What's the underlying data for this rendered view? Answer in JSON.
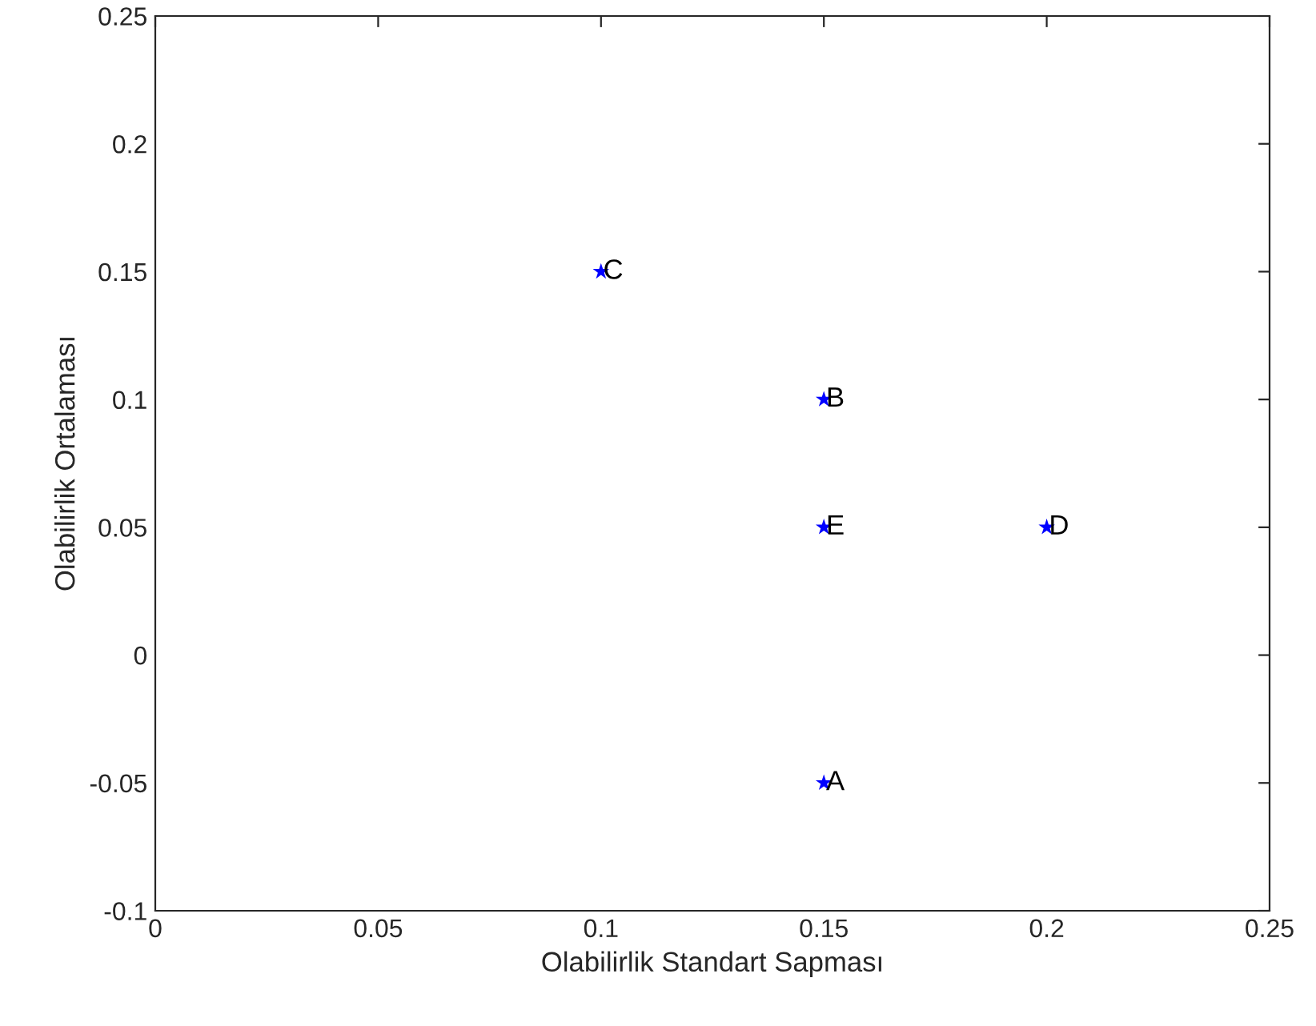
{
  "chart_data": {
    "type": "scatter",
    "xlabel": "Olabilirlik Standart Sapması",
    "ylabel": "Olabilirlik Ortalaması",
    "x": [
      0.15,
      0.15,
      0.1,
      0.2,
      0.15
    ],
    "series": [
      {
        "color": "#0000ff",
        "values": [
          -0.05,
          0.1,
          0.15,
          0.05,
          0.05
        ]
      }
    ],
    "marker": "star",
    "grid": false,
    "xlim": [
      0,
      0.25
    ],
    "xticks": [
      0,
      0.05,
      0.1,
      0.15,
      0.2,
      0.25
    ],
    "ylim": [
      -0.1,
      0.25
    ],
    "yticks": [
      -0.1,
      -0.05,
      0,
      0.05,
      0.1,
      0.15,
      0.2,
      0.25
    ],
    "annotations": [
      {
        "text": "A",
        "x": 0.15,
        "y": -0.05
      },
      {
        "text": "B",
        "x": 0.15,
        "y": 0.1
      },
      {
        "text": "C",
        "x": 0.1,
        "y": 0.15
      },
      {
        "text": "D",
        "x": 0.2,
        "y": 0.05
      },
      {
        "text": "E",
        "x": 0.15,
        "y": 0.05
      }
    ]
  }
}
